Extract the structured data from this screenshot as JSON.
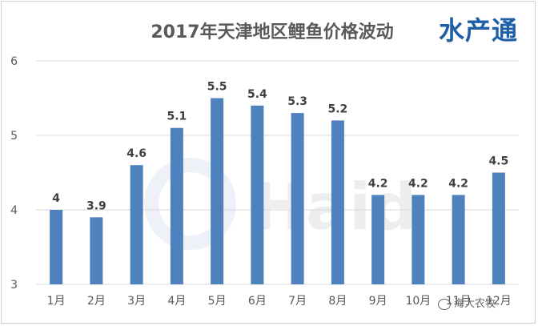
{
  "brand": "水产通",
  "footer": "海大农牧",
  "chart_data": {
    "type": "bar",
    "title": "2017年天津地区鲤鱼价格波动",
    "categories": [
      "1月",
      "2月",
      "3月",
      "4月",
      "5月",
      "6月",
      "7月",
      "8月",
      "9月",
      "10月",
      "11月",
      "12月"
    ],
    "values": [
      4,
      3.9,
      4.6,
      5.1,
      5.5,
      5.4,
      5.3,
      5.2,
      4.2,
      4.2,
      4.2,
      4.5
    ],
    "data_labels": [
      "4",
      "3.9",
      "4.6",
      "5.1",
      "5.5",
      "5.4",
      "5.3",
      "5.2",
      "4.2",
      "4.2",
      "4.2",
      "4.5"
    ],
    "ylim": [
      3,
      6
    ],
    "yticks": [
      3,
      4,
      5,
      6
    ],
    "xlabel": "",
    "ylabel": "",
    "grid": true,
    "bar_color": "#4f81bd",
    "grid_color": "#d9d9d9"
  }
}
